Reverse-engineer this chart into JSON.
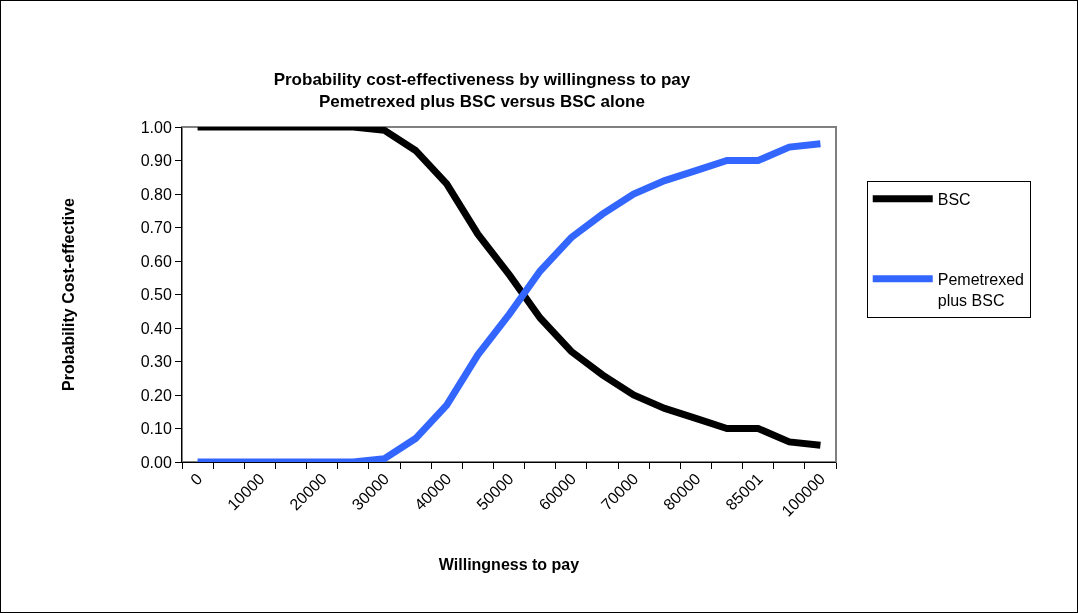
{
  "chart_data": {
    "type": "line",
    "title": "Probability cost-effectiveness by willingness to pay",
    "subtitle": "Pemetrexed plus BSC versus BSC alone",
    "xlabel": "Willingness to pay",
    "ylabel": "Probability Cost-effective",
    "categories": [
      "0",
      null,
      "10000",
      null,
      "20000",
      null,
      "30000",
      null,
      "40000",
      null,
      "50000",
      null,
      "60000",
      null,
      "70000",
      null,
      "80000",
      null,
      "85001",
      null,
      "100000"
    ],
    "series": [
      {
        "name": "BSC",
        "color": "#000000",
        "values": [
          1,
          1,
          1,
          1,
          1,
          1,
          0.99,
          0.93,
          0.83,
          0.68,
          0.56,
          0.43,
          0.33,
          0.26,
          0.2,
          0.16,
          0.13,
          0.1,
          0.1,
          0.06,
          0.05
        ]
      },
      {
        "name": "Pemetrexed plus BSC",
        "color": "#3366ff",
        "values": [
          0,
          0,
          0,
          0,
          0,
          0,
          0.01,
          0.07,
          0.17,
          0.32,
          0.44,
          0.57,
          0.67,
          0.74,
          0.8,
          0.84,
          0.87,
          0.9,
          0.9,
          0.94,
          0.95
        ]
      }
    ],
    "ylim": [
      0,
      1
    ],
    "yticks": [
      {
        "value": 0,
        "label": "0.00"
      },
      {
        "value": 0.1,
        "label": "0.10"
      },
      {
        "value": 0.2,
        "label": "0.20"
      },
      {
        "value": 0.3,
        "label": "0.30"
      },
      {
        "value": 0.4,
        "label": "0.40"
      },
      {
        "value": 0.5,
        "label": "0.50"
      },
      {
        "value": 0.6,
        "label": "0.60"
      },
      {
        "value": 0.7,
        "label": "0.70"
      },
      {
        "value": 0.8,
        "label": "0.80"
      },
      {
        "value": 0.9,
        "label": "0.90"
      },
      {
        "value": 1,
        "label": "1.00"
      }
    ],
    "grid": false,
    "legend": "right",
    "marker": "none",
    "line_style": "solid"
  }
}
